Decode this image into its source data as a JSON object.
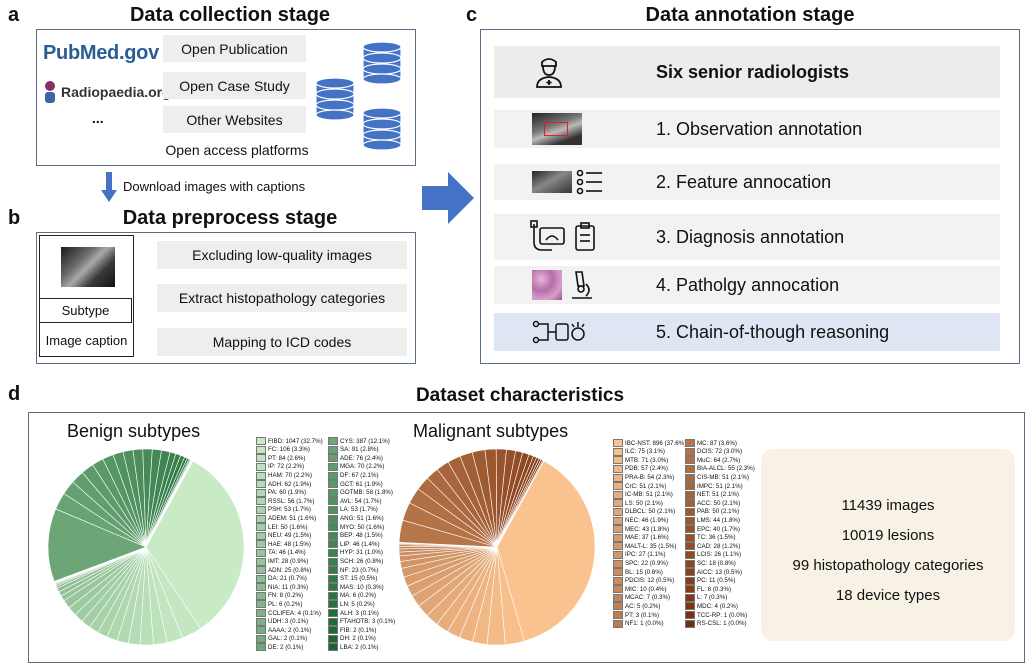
{
  "panels": {
    "a": "a",
    "b": "b",
    "c": "c",
    "d": "d"
  },
  "collection": {
    "title": "Data collection stage",
    "logo_pubmed": "PubMed.gov",
    "logo_radiopaedia": "Radiopaedia.org",
    "ellipsis": "...",
    "sources": [
      "Open Publication",
      "Open Case Study",
      "Other Websites"
    ],
    "caption": "Open access platforms"
  },
  "download_label": "Download images with captions",
  "preprocess": {
    "title": "Data preprocess stage",
    "subtype": "Subtype",
    "image_caption": "Image caption",
    "steps": [
      "Excluding low-quality images",
      "Extract histopathology categories",
      "Mapping to ICD codes"
    ]
  },
  "annotation": {
    "title": "Data annotation stage",
    "header": "Six senior radiologists",
    "steps": [
      "1. Observation annotation",
      "2. Feature annocation",
      "3. Diagnosis annotation",
      "4. Patholgy annocation",
      "5. Chain-of-though reasoning"
    ]
  },
  "characteristics": {
    "title": "Dataset characteristics",
    "benign_title": "Benign subtypes",
    "malignant_title": "Malignant subtypes",
    "stats": [
      "11439 images",
      "10019 lesions",
      "99 histopathology categories",
      "18 device types"
    ]
  },
  "colors": {
    "box_border": "#5a6f84",
    "arrow": "#4472c4",
    "db": "#4472c4",
    "highlight": "#dfe6f3",
    "stats_bg": "#f7f1e6"
  },
  "chart_data": [
    {
      "type": "pie",
      "title": "Benign subtypes",
      "legend": [
        "FIBD: 1047 (32.7%)",
        "FC: 106 (3.3%)",
        "PT: 84 (2.6%)",
        "IP: 72 (2.2%)",
        "HAM: 70 (2.2%)",
        "ADH: 62 (1.9%)",
        "PA: 60 (1.9%)",
        "RSSL: 56 (1.7%)",
        "PSH: 53 (1.7%)",
        "ADEM: 51 (1.6%)",
        "LEI: 50 (1.6%)",
        "NEU: 49 (1.5%)",
        "HAE: 48 (1.5%)",
        "TA: 46 (1.4%)",
        "IMT: 28 (0.9%)",
        "ADN: 25 (0.8%)",
        "DA: 21 (0.7%)",
        "NIA: 11 (0.3%)",
        "FN: 8 (0.2%)",
        "PL: 6 (0.2%)",
        "CCLIFEA: 4 (0.1%)",
        "UDH: 3 (0.1%)",
        "AAAA: 2 (0.1%)",
        "GAL: 2 (0.1%)",
        "DE: 2 (0.1%)",
        "CYS: 387 (12.1%)",
        "SA: 91 (2.8%)",
        "ADE: 76 (2.4%)",
        "MGA: 70 (2.2%)",
        "DF: 67 (2.1%)",
        "GCT: 61 (1.9%)",
        "GOTMB: 58 (1.8%)",
        "AVL: 54 (1.7%)",
        "LA: 53 (1.7%)",
        "ANG: 51 (1.6%)",
        "MYO: 50 (1.6%)",
        "BEP: 48 (1.5%)",
        "LIP: 46 (1.4%)",
        "HYP: 31 (1.0%)",
        "SCH: 26 (0.8%)",
        "NF: 23 (0.7%)",
        "ST: 15 (0.5%)",
        "MAS: 10 (0.3%)",
        "MA: 6 (0.2%)",
        "LN: 5 (0.2%)",
        "ALH: 3 (0.1%)",
        "FTAHOTB: 3 (0.1%)",
        "FIB: 2 (0.1%)",
        "DH: 2 (0.1%)",
        "LBA: 2 (0.1%)"
      ],
      "values": [
        1047,
        106,
        84,
        72,
        70,
        62,
        60,
        56,
        53,
        51,
        50,
        49,
        48,
        46,
        28,
        25,
        21,
        11,
        8,
        6,
        4,
        3,
        2,
        2,
        2,
        387,
        91,
        76,
        70,
        67,
        61,
        58,
        54,
        53,
        51,
        50,
        48,
        46,
        31,
        26,
        23,
        15,
        10,
        6,
        5,
        3,
        3,
        2,
        2,
        2
      ]
    },
    {
      "type": "pie",
      "title": "Malignant subtypes",
      "legend": [
        "IBC-NST: 896 (37.6%)",
        "ILC: 75 (3.1%)",
        "MTB: 71 (3.0%)",
        "PDB: 57 (2.4%)",
        "PRA-B: 54 (2.3%)",
        "CrC: 51 (2.1%)",
        "IC-MB: 51 (2.1%)",
        "LS: 50 (2.1%)",
        "DLBCL: 50 (2.1%)",
        "NEC: 46 (1.9%)",
        "MEC: 43 (1.8%)",
        "MAE: 37 (1.6%)",
        "MALT-L: 35 (1.5%)",
        "IPC: 27 (1.1%)",
        "SPC: 22 (0.9%)",
        "BL: 15 (0.6%)",
        "PDCIS: 12 (0.5%)",
        "MIC: 10 (0.4%)",
        "MCAC: 7 (0.3%)",
        "AC: 5 (0.2%)",
        "PT: 3 (0.1%)",
        "NF1: 1 (0.0%)",
        "MC: 87 (3.6%)",
        "DCIS: 72 (3.0%)",
        "MuC: 64 (2.7%)",
        "BIA-ALCL: 55 (2.3%)",
        "CIS-MB: 51 (2.1%)",
        "IMPC: 51 (2.1%)",
        "NET: 51 (2.1%)",
        "ACC: 50 (2.1%)",
        "PAB: 50 (2.1%)",
        "LMS: 44 (1.8%)",
        "EPC: 40 (1.7%)",
        "TC: 36 (1.5%)",
        "CAD: 28 (1.2%)",
        "LCIS: 26 (1.1%)",
        "SC: 18 (0.8%)",
        "AICC: 13 (0.5%)",
        "PC: 11 (0.5%)",
        "FL: 8 (0.3%)",
        "L: 7 (0.3%)",
        "MDC: 4 (0.2%)",
        "TCC-RP: 1 (0.0%)",
        "RS-CSL: 1 (0.0%)"
      ],
      "values": [
        896,
        75,
        71,
        57,
        54,
        51,
        51,
        50,
        50,
        46,
        43,
        37,
        35,
        27,
        22,
        15,
        12,
        10,
        7,
        5,
        3,
        1,
        87,
        72,
        64,
        55,
        51,
        51,
        51,
        50,
        50,
        44,
        40,
        36,
        28,
        26,
        18,
        13,
        11,
        8,
        7,
        4,
        1,
        1
      ]
    }
  ]
}
